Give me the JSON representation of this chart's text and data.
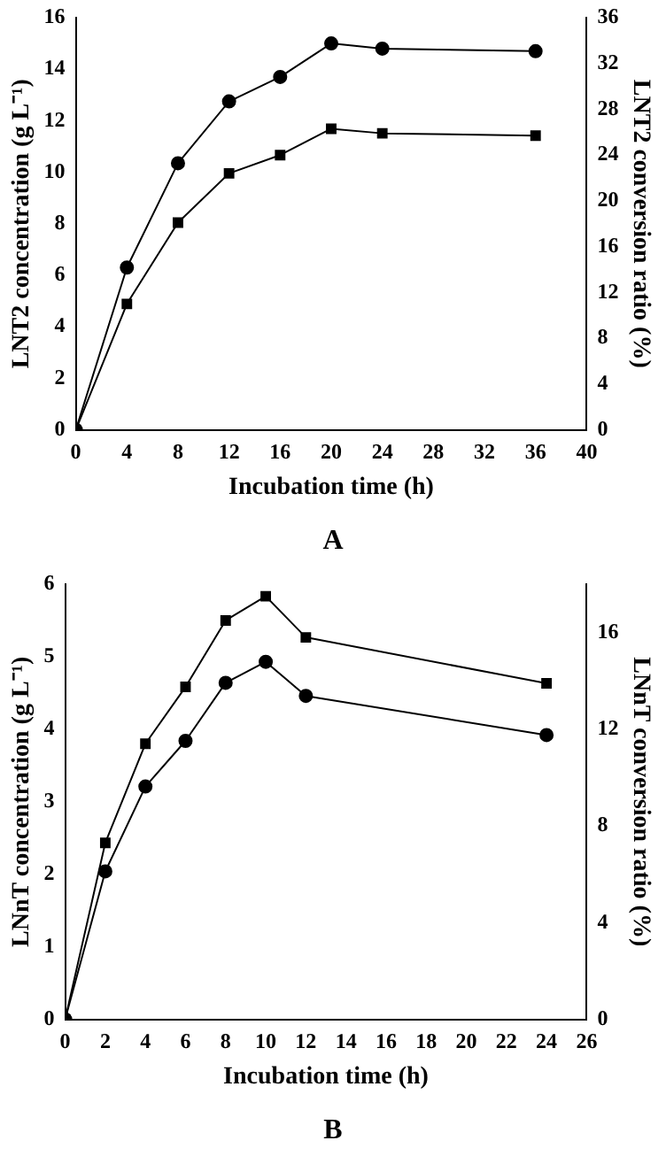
{
  "chart_data": [
    {
      "type": "line",
      "xlabel": "Incubation time (h)",
      "ylabel": "LNT2 concentration (g L⁻¹)",
      "y2label": "LNT2 conversion ratio (%)",
      "annotations": [
        "A"
      ],
      "x": [
        0,
        4,
        8,
        12,
        16,
        20,
        24,
        36
      ],
      "series": [
        {
          "color": "#000000",
          "marker": "circle",
          "values": [
            0,
            6.3,
            10.35,
            12.75,
            13.7,
            15.0,
            14.8,
            14.7
          ]
        },
        {
          "color": "#000000",
          "marker": "square",
          "axis": "y2",
          "values": [
            0,
            11.0,
            18.1,
            22.4,
            24.0,
            26.3,
            25.9,
            25.7
          ]
        }
      ],
      "xlim": [
        0,
        40
      ],
      "xticks": [
        0,
        4,
        8,
        12,
        16,
        20,
        24,
        28,
        32,
        36,
        40
      ],
      "ylim": [
        0,
        16
      ],
      "yticks": [
        0,
        2,
        4,
        6,
        8,
        10,
        12,
        14,
        16
      ],
      "y2lim": [
        0,
        36
      ],
      "y2ticks": [
        0,
        4,
        8,
        12,
        16,
        20,
        24,
        28,
        32,
        36
      ],
      "legend": false
    },
    {
      "type": "line",
      "xlabel": "Incubation time (h)",
      "ylabel": "LNnT concentration (g L⁻¹)",
      "y2label": "LNnT conversion ratio (%)",
      "annotations": [
        "B"
      ],
      "x": [
        0,
        2,
        4,
        6,
        8,
        10,
        12,
        24
      ],
      "series": [
        {
          "color": "#000000",
          "marker": "circle",
          "values": [
            0,
            2.04,
            3.21,
            3.84,
            4.64,
            4.93,
            4.46,
            3.92
          ]
        },
        {
          "color": "#000000",
          "marker": "square",
          "axis": "y2",
          "values": [
            0,
            7.3,
            11.4,
            13.75,
            16.5,
            17.5,
            15.8,
            13.9
          ]
        }
      ],
      "xlim": [
        0,
        26
      ],
      "xticks": [
        0,
        2,
        4,
        6,
        8,
        10,
        12,
        14,
        16,
        18,
        20,
        22,
        24,
        26
      ],
      "ylim": [
        0,
        6
      ],
      "yticks": [
        0,
        1,
        2,
        3,
        4,
        5,
        6
      ],
      "y2lim": [
        0,
        18
      ],
      "y2ticks": [
        0,
        4,
        8,
        12,
        16
      ],
      "legend": false
    }
  ]
}
